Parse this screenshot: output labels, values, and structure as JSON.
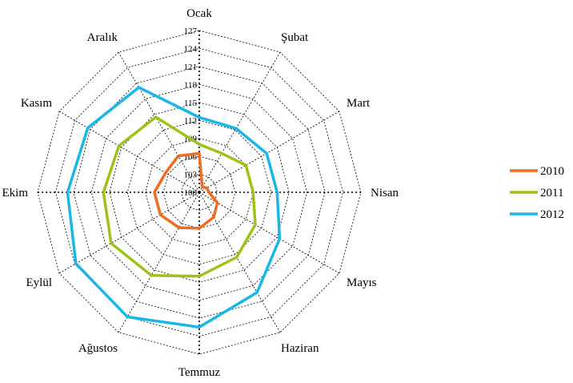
{
  "chart_data": {
    "type": "radar",
    "categories": [
      "Ocak",
      "Şubat",
      "Mart",
      "Nisan",
      "Mayıs",
      "Haziran",
      "Temmuz",
      "Ağustos",
      "Eylül",
      "Ekim",
      "Kasım",
      "Aralık"
    ],
    "rlim": [
      100,
      127
    ],
    "ticks": [
      "100",
      "103",
      "106",
      "109",
      "112",
      "115",
      "118",
      "121",
      "124",
      "127"
    ],
    "grid": true,
    "legend_position": "right",
    "series": [
      {
        "name": "2010",
        "color": "#f26b21",
        "values": [
          106.5,
          101.0,
          101.5,
          101.6,
          103.5,
          104.8,
          106.0,
          106.8,
          107.5,
          107.5,
          106.5,
          107.0
        ]
      },
      {
        "name": "2011",
        "color": "#9dc31b",
        "values": [
          108.0,
          107.5,
          109.0,
          109.0,
          110.8,
          112.5,
          114.0,
          116.0,
          117.0,
          116.0,
          115.5,
          114.5
        ]
      },
      {
        "name": "2012",
        "color": "#17b8e8",
        "values": [
          112.5,
          112.3,
          113.0,
          113.0,
          115.5,
          119.3,
          122.5,
          124.0,
          123.8,
          122.0,
          121.5,
          120.2
        ]
      }
    ]
  }
}
